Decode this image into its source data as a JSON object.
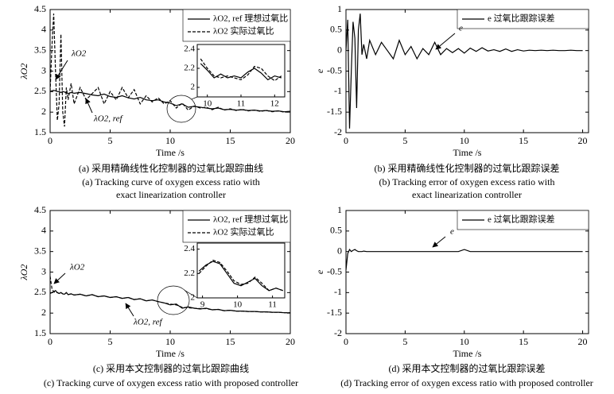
{
  "chart_data": [
    {
      "type": "line",
      "xlabel": "Time /s",
      "ylabel": "λO2",
      "xlim": [
        0,
        20
      ],
      "ylim": [
        1.5,
        4.5
      ],
      "xticks": [
        0,
        5,
        10,
        15,
        20
      ],
      "yticks": [
        1.5,
        2,
        2.5,
        3,
        3.5,
        4,
        4.5
      ],
      "legend": "upper right",
      "x": [
        0,
        0.15,
        0.3,
        0.45,
        0.6,
        0.75,
        0.9,
        1.05,
        1.2,
        1.35,
        1.5,
        1.75,
        2,
        2.5,
        3,
        3.5,
        4,
        4.5,
        5,
        5.5,
        6,
        6.5,
        7,
        7.5,
        8,
        8.5,
        9,
        9.5,
        10,
        10.5,
        11,
        11.5,
        12,
        12.5,
        13,
        13.5,
        14,
        14.5,
        15,
        15.5,
        16,
        16.5,
        17,
        17.5,
        18,
        18.5,
        19,
        19.5,
        20
      ],
      "series": [
        {
          "name": "λO2, ref 理想过氧比",
          "color": "#000000",
          "dash": false,
          "values": [
            2.5,
            2.52,
            2.53,
            2.52,
            2.5,
            2.5,
            2.48,
            2.5,
            2.49,
            2.47,
            2.45,
            2.48,
            2.46,
            2.48,
            2.45,
            2.42,
            2.4,
            2.44,
            2.38,
            2.36,
            2.4,
            2.35,
            2.32,
            2.36,
            2.3,
            2.28,
            2.3,
            2.25,
            2.22,
            2.16,
            2.2,
            2.12,
            2.14,
            2.12,
            2.1,
            2.08,
            2.1,
            2.06,
            2.07,
            2.05,
            2.06,
            2.04,
            2.05,
            2.03,
            2.04,
            2.02,
            2.03,
            2.01,
            2.02
          ]
        },
        {
          "name": "λO2 实际过氧比",
          "color": "#000000",
          "dash": true,
          "values": [
            2.5,
            3.6,
            4.4,
            3.0,
            1.8,
            2.2,
            3.9,
            2.0,
            1.65,
            2.6,
            2.3,
            2.7,
            2.2,
            2.6,
            2.3,
            2.45,
            2.6,
            2.2,
            2.5,
            2.3,
            2.6,
            2.35,
            2.55,
            2.2,
            2.4,
            2.25,
            2.35,
            2.2,
            2.28,
            2.1,
            2.22,
            2.05,
            2.15,
            2.1,
            2.12,
            2.06,
            2.12,
            2.05,
            2.08,
            2.04,
            2.07,
            2.03,
            2.05,
            2.02,
            2.04,
            2.01,
            2.03,
            2.0,
            2.01
          ]
        }
      ],
      "inset": {
        "xlim": [
          9.7,
          12.3
        ],
        "ylim": [
          1.9,
          2.45
        ],
        "xticks": [
          10,
          11,
          12
        ],
        "yticks": [
          2,
          2.2,
          2.4
        ],
        "x": [
          9.8,
          10,
          10.2,
          10.4,
          10.6,
          10.8,
          11,
          11.2,
          11.4,
          11.6,
          11.8,
          12,
          12.2
        ],
        "values": [
          [
            2.25,
            2.18,
            2.1,
            2.14,
            2.1,
            2.12,
            2.1,
            2.16,
            2.2,
            2.15,
            2.08,
            2.12,
            2.1
          ],
          [
            2.3,
            2.2,
            2.12,
            2.1,
            2.12,
            2.1,
            2.08,
            2.13,
            2.22,
            2.2,
            2.12,
            2.07,
            2.12
          ]
        ]
      },
      "annotations": [
        "λO2",
        "λO2, ref"
      ],
      "caption": [
        "(a) 采用精确线性化控制器的过氧比跟踪曲线",
        "(a) Tracking curve of oxygen excess ratio with",
        "exact linearization controller"
      ]
    },
    {
      "type": "line",
      "xlabel": "Time /s",
      "ylabel": "e",
      "xlim": [
        0,
        20.5
      ],
      "ylim": [
        -2,
        1
      ],
      "xticks": [
        0,
        5,
        10,
        15,
        20
      ],
      "yticks": [
        -2,
        -1.5,
        -1,
        -0.5,
        0,
        0.5,
        1
      ],
      "legend": "upper right",
      "x": [
        0,
        0.15,
        0.3,
        0.45,
        0.6,
        0.75,
        0.9,
        1.05,
        1.2,
        1.35,
        1.5,
        1.75,
        2,
        2.5,
        3,
        3.5,
        4,
        4.5,
        5,
        5.5,
        6,
        6.5,
        7,
        7.5,
        8,
        8.5,
        9,
        9.5,
        10,
        10.5,
        11,
        11.5,
        12,
        12.5,
        13,
        13.5,
        14,
        14.5,
        15,
        15.5,
        16,
        16.5,
        17,
        17.5,
        18,
        18.5,
        19,
        19.5,
        20
      ],
      "series": [
        {
          "name": "e 过氧比跟踪误差",
          "color": "#000000",
          "dash": false,
          "values": [
            0,
            0.75,
            -1.9,
            -0.5,
            0.7,
            0.3,
            -1.4,
            0.5,
            0.9,
            -0.1,
            0.15,
            -0.2,
            0.25,
            -0.1,
            0.2,
            0,
            -0.2,
            0.25,
            -0.1,
            0.1,
            -0.2,
            0.05,
            -0.1,
            0.2,
            -0.1,
            0.05,
            -0.05,
            0.05,
            -0.06,
            0.06,
            -0.02,
            0.07,
            -0.01,
            0.02,
            -0.02,
            0.04,
            -0.02,
            0.02,
            -0.01,
            0.01,
            0,
            0.01,
            0,
            0.01,
            0,
            0,
            0.01,
            0,
            0
          ]
        }
      ],
      "annotations": [
        "e"
      ],
      "caption": [
        "(b) 采用精确线性化控制器的过氧比跟踪误差",
        "(b) Tracking error of oxygen excess ratio with",
        "exact linearization controller"
      ]
    },
    {
      "type": "line",
      "xlabel": "Time /s",
      "ylabel": "λO2",
      "xlim": [
        0,
        20
      ],
      "ylim": [
        1.5,
        4.5
      ],
      "xticks": [
        0,
        5,
        10,
        15,
        20
      ],
      "yticks": [
        1.5,
        2,
        2.5,
        3,
        3.5,
        4,
        4.5
      ],
      "legend": "upper right",
      "x": [
        0,
        0.15,
        0.3,
        0.45,
        0.6,
        0.75,
        0.9,
        1.05,
        1.2,
        1.35,
        1.5,
        1.75,
        2,
        2.5,
        3,
        3.5,
        4,
        4.5,
        5,
        5.5,
        6,
        6.5,
        7,
        7.5,
        8,
        8.5,
        9,
        9.5,
        10,
        10.5,
        11,
        11.5,
        12,
        12.5,
        13,
        13.5,
        14,
        14.5,
        15,
        15.5,
        16,
        16.5,
        17,
        17.5,
        18,
        18.5,
        19,
        19.5,
        20
      ],
      "series": [
        {
          "name": "λO2, ref 理想过氧比",
          "color": "#000000",
          "dash": false,
          "values": [
            2.48,
            2.5,
            2.52,
            2.55,
            2.5,
            2.48,
            2.5,
            2.47,
            2.46,
            2.5,
            2.45,
            2.47,
            2.44,
            2.46,
            2.42,
            2.45,
            2.4,
            2.42,
            2.38,
            2.4,
            2.36,
            2.38,
            2.33,
            2.35,
            2.3,
            2.32,
            2.28,
            2.25,
            2.2,
            2.22,
            2.12,
            2.15,
            2.12,
            2.1,
            2.12,
            2.08,
            2.09,
            2.06,
            2.07,
            2.05,
            2.05,
            2.04,
            2.04,
            2.03,
            2.03,
            2.02,
            2.02,
            2.01,
            2.01
          ]
        },
        {
          "name": "λO2 实际过氧比",
          "color": "#000000",
          "dash": true,
          "values": [
            2.9,
            2.6,
            2.52,
            2.5,
            2.5,
            2.48,
            2.5,
            2.47,
            2.46,
            2.5,
            2.45,
            2.47,
            2.44,
            2.46,
            2.42,
            2.45,
            2.4,
            2.42,
            2.38,
            2.4,
            2.36,
            2.38,
            2.33,
            2.35,
            2.3,
            2.32,
            2.28,
            2.25,
            2.22,
            2.2,
            2.14,
            2.13,
            2.12,
            2.11,
            2.11,
            2.08,
            2.09,
            2.06,
            2.07,
            2.05,
            2.05,
            2.04,
            2.04,
            2.03,
            2.03,
            2.02,
            2.02,
            2.01,
            2.01
          ]
        }
      ],
      "inset": {
        "xlim": [
          8.85,
          11.35
        ],
        "ylim": [
          2,
          2.45
        ],
        "xticks": [
          9,
          10,
          11
        ],
        "yticks": [
          2,
          2.2,
          2.4
        ],
        "x": [
          8.9,
          9.1,
          9.3,
          9.5,
          9.7,
          9.9,
          10.1,
          10.3,
          10.5,
          10.7,
          10.9,
          11.1,
          11.3
        ],
        "values": [
          [
            2.22,
            2.27,
            2.3,
            2.28,
            2.2,
            2.12,
            2.1,
            2.13,
            2.16,
            2.1,
            2.06,
            2.08,
            2.06
          ],
          [
            2.2,
            2.26,
            2.31,
            2.29,
            2.22,
            2.14,
            2.11,
            2.12,
            2.17,
            2.12,
            2.06,
            2.08,
            2.06
          ]
        ]
      },
      "annotations": [
        "λO2",
        "λO2, ref"
      ],
      "caption": [
        "(c) 采用本文控制器的过氧比跟踪曲线",
        "(c) Tracking curve of oxygen excess ratio with proposed controller"
      ]
    },
    {
      "type": "line",
      "xlabel": "Time /s",
      "ylabel": "e",
      "xlim": [
        0,
        20.5
      ],
      "ylim": [
        -2,
        1
      ],
      "xticks": [
        0,
        5,
        10,
        15,
        20
      ],
      "yticks": [
        -2,
        -1.5,
        -1,
        -0.5,
        0,
        0.5,
        1
      ],
      "legend": "upper right",
      "x": [
        0,
        0.15,
        0.3,
        0.45,
        0.6,
        0.75,
        0.9,
        1.05,
        1.2,
        1.35,
        1.5,
        1.75,
        2,
        2.5,
        3,
        3.5,
        4,
        4.5,
        5,
        5.5,
        6,
        6.5,
        7,
        7.5,
        8,
        8.5,
        9,
        9.5,
        10,
        10.5,
        11,
        11.5,
        12,
        12.5,
        13,
        13.5,
        14,
        14.5,
        15,
        15.5,
        16,
        16.5,
        17,
        17.5,
        18,
        18.5,
        19,
        19.5,
        20
      ],
      "series": [
        {
          "name": "e 过氧比跟踪误差",
          "color": "#000000",
          "dash": false,
          "values": [
            -0.45,
            -0.05,
            0.05,
            0,
            0.03,
            0.05,
            0.02,
            0,
            0,
            0,
            0.01,
            0,
            0,
            0,
            0,
            0,
            0,
            0,
            0,
            0,
            0,
            0,
            0,
            0,
            0,
            0,
            0,
            0,
            0.05,
            0,
            0,
            0,
            0,
            0,
            0,
            0,
            0,
            0,
            0,
            0,
            0,
            0,
            0,
            0,
            0,
            0,
            0,
            0,
            0
          ]
        }
      ],
      "annotations": [
        "e"
      ],
      "caption": [
        "(d) 采用本文控制器的过氧比跟踪误差",
        "(d) Tracking error of oxygen excess ratio with proposed controller"
      ]
    }
  ]
}
